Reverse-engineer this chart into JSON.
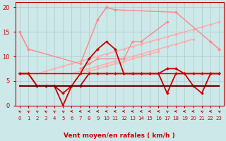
{
  "bg_color": "#cce8e8",
  "grid_color": "#aacccc",
  "xlabel": "Vent moyen/en rafales ( km/h )",
  "ylim": [
    0,
    21
  ],
  "xlim": [
    -0.5,
    23.5
  ],
  "yticks": [
    0,
    5,
    10,
    15,
    20
  ],
  "xticks": [
    0,
    1,
    2,
    3,
    4,
    5,
    6,
    7,
    8,
    9,
    10,
    11,
    12,
    13,
    14,
    15,
    16,
    17,
    18,
    19,
    20,
    21,
    22,
    23
  ],
  "series": [
    {
      "comment": "light pink top fan line - goes from ~6 at x=0 to ~19 at x=18, dips then recovers",
      "x": [
        0,
        1,
        2,
        3,
        4,
        5,
        6,
        7,
        8,
        9,
        10,
        11,
        12,
        13,
        14,
        15,
        16,
        17,
        18,
        19,
        20,
        21,
        22,
        23
      ],
      "y": [
        15.0,
        11.5,
        null,
        null,
        null,
        null,
        null,
        8.5,
        null,
        17.5,
        20.0,
        19.5,
        null,
        null,
        null,
        null,
        null,
        null,
        19.0,
        null,
        null,
        null,
        13.0,
        11.5
      ],
      "color": "#ffaaaa",
      "lw": 1.0,
      "marker": "D",
      "ms": 2.0
    },
    {
      "comment": "light pink 2nd fan line",
      "x": [
        0,
        1,
        2,
        3,
        4,
        5,
        6,
        7,
        8,
        9,
        10,
        11,
        12,
        13,
        14,
        15,
        16,
        17,
        18,
        19,
        20,
        21,
        22,
        23
      ],
      "y": [
        6.5,
        6.5,
        6.5,
        7.0,
        7.5,
        8.0,
        8.5,
        9.0,
        9.5,
        10.0,
        10.5,
        11.0,
        11.5,
        12.0,
        12.5,
        13.0,
        13.5,
        14.0,
        14.5,
        15.0,
        15.5,
        16.0,
        16.5,
        17.0
      ],
      "color": "#ffaaaa",
      "lw": 1.0,
      "marker": "D",
      "ms": 2.0
    },
    {
      "comment": "light pink 3rd fan line",
      "x": [
        0,
        1,
        2,
        3,
        4,
        5,
        6,
        7,
        8,
        9,
        10,
        11,
        12,
        13,
        14,
        15,
        16,
        17,
        18,
        19,
        20,
        21,
        22,
        23
      ],
      "y": [
        6.5,
        6.5,
        6.5,
        6.5,
        6.5,
        6.5,
        6.5,
        7.0,
        7.5,
        8.0,
        8.5,
        9.0,
        9.5,
        10.0,
        10.5,
        11.0,
        11.5,
        12.0,
        12.5,
        13.0,
        13.5,
        null,
        null,
        null
      ],
      "color": "#ffaaaa",
      "lw": 1.0,
      "marker": "D",
      "ms": 2.0
    },
    {
      "comment": "light pink 4th fan line - flatter",
      "x": [
        0,
        1,
        2,
        3,
        4,
        5,
        6,
        7,
        8,
        9,
        10,
        11,
        12,
        13,
        14,
        15,
        16,
        17,
        18,
        19,
        20,
        21,
        22,
        23
      ],
      "y": [
        6.5,
        6.5,
        6.5,
        6.5,
        6.5,
        6.5,
        6.5,
        6.5,
        7.0,
        7.5,
        8.0,
        8.5,
        9.0,
        9.5,
        10.0,
        10.5,
        11.0,
        null,
        null,
        null,
        null,
        null,
        null,
        null
      ],
      "color": "#ffaaaa",
      "lw": 1.0,
      "marker": "D",
      "ms": 2.0
    },
    {
      "comment": "medium pink jagged line - top series",
      "x": [
        0,
        1,
        7,
        9,
        10,
        11,
        18,
        22,
        23
      ],
      "y": [
        15.0,
        11.5,
        8.5,
        17.5,
        20.0,
        19.5,
        19.0,
        13.0,
        11.5
      ],
      "color": "#ff8888",
      "lw": 1.0,
      "marker": "D",
      "ms": 2.0
    },
    {
      "comment": "medium pink series 2",
      "x": [
        7,
        8,
        9,
        12,
        13,
        14,
        17
      ],
      "y": [
        7.5,
        8.5,
        9.5,
        9.5,
        13.0,
        13.0,
        17.0
      ],
      "color": "#ff8888",
      "lw": 1.0,
      "marker": "D",
      "ms": 2.0
    },
    {
      "comment": "dark red main wind speed line with peaks",
      "x": [
        0,
        1,
        2,
        3,
        4,
        5,
        6,
        7,
        8,
        9,
        10,
        11,
        12,
        13,
        14,
        15,
        16,
        17,
        18,
        19,
        20,
        21,
        22,
        23
      ],
      "y": [
        6.5,
        6.5,
        4.0,
        4.0,
        4.0,
        2.5,
        4.0,
        6.5,
        9.5,
        11.5,
        13.0,
        11.5,
        6.5,
        6.5,
        6.5,
        6.5,
        6.5,
        7.5,
        7.5,
        6.5,
        6.5,
        6.5,
        6.5,
        6.5
      ],
      "color": "#cc0000",
      "lw": 1.3,
      "marker": "D",
      "ms": 2.0
    },
    {
      "comment": "dark red second line - dips to 0 around x=5, dip at x=17",
      "x": [
        0,
        1,
        2,
        3,
        4,
        5,
        6,
        7,
        8,
        9,
        10,
        11,
        12,
        13,
        14,
        15,
        16,
        17,
        18,
        19,
        20,
        21,
        22,
        23
      ],
      "y": [
        6.5,
        6.5,
        4.0,
        4.0,
        4.0,
        0.0,
        4.0,
        4.0,
        6.5,
        6.5,
        6.5,
        6.5,
        6.5,
        6.5,
        6.5,
        6.5,
        6.5,
        2.5,
        6.5,
        6.5,
        4.0,
        2.5,
        6.5,
        6.5
      ],
      "color": "#cc0000",
      "lw": 1.3,
      "marker": "D",
      "ms": 2.0
    },
    {
      "comment": "flat dark line at y=4",
      "x": [
        0,
        23
      ],
      "y": [
        4.0,
        4.0
      ],
      "color": "#660000",
      "lw": 1.5,
      "marker": null,
      "ms": 0
    },
    {
      "comment": "flat red line at y=6.5",
      "x": [
        0,
        23
      ],
      "y": [
        6.5,
        6.5
      ],
      "color": "#cc0000",
      "lw": 1.0,
      "marker": null,
      "ms": 0
    }
  ],
  "arrow_angles": [
    225,
    225,
    225,
    225,
    225,
    225,
    270,
    270,
    270,
    270,
    270,
    270,
    270,
    270,
    270,
    270,
    270,
    225,
    270,
    270,
    270,
    225,
    270,
    225
  ],
  "arrow_color": "#cc0000",
  "axis_label_color": "#cc0000",
  "tick_color": "#cc0000"
}
